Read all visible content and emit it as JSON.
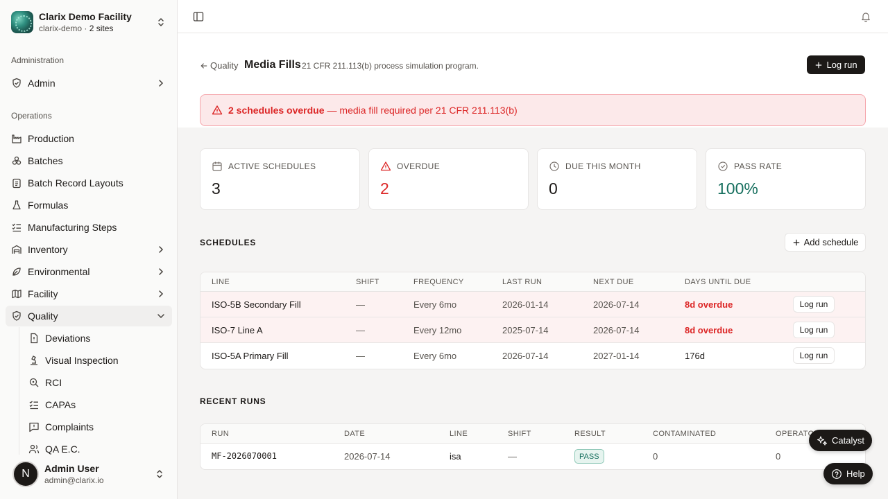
{
  "org": {
    "name": "Clarix Demo Facility",
    "slug": "clarix-demo",
    "separator": "·",
    "sites": "2 sites"
  },
  "sidebar": {
    "admin_group": "Administration",
    "admin_item": "Admin",
    "ops_group": "Operations",
    "items": [
      "Production",
      "Batches",
      "Batch Record Layouts",
      "Formulas",
      "Manufacturing Steps",
      "Inventory",
      "Environmental",
      "Facility",
      "Quality"
    ],
    "quality_sub": [
      "Deviations",
      "Visual Inspection",
      "RCI",
      "CAPAs",
      "Complaints",
      "QA E.C."
    ]
  },
  "user": {
    "initial": "N",
    "name": "Admin User",
    "email": "admin@clarix.io"
  },
  "header": {
    "back_label": "Quality",
    "title": "Media Fills",
    "subtitle": "21 CFR 211.113(b) process simulation program.",
    "log_run_label": "Log run"
  },
  "alert": {
    "bold": "2 schedules overdue",
    "rest": "— media fill required per 21 CFR 211.113(b)"
  },
  "stats": [
    {
      "label": "ACTIVE SCHEDULES",
      "value": "3"
    },
    {
      "label": "OVERDUE",
      "value": "2"
    },
    {
      "label": "DUE THIS MONTH",
      "value": "0"
    },
    {
      "label": "PASS RATE",
      "value": "100%"
    }
  ],
  "schedules": {
    "title": "SCHEDULES",
    "add_label": "Add schedule",
    "columns": [
      "LINE",
      "SHIFT",
      "FREQUENCY",
      "LAST RUN",
      "NEXT DUE",
      "DAYS UNTIL DUE"
    ],
    "rows": [
      {
        "line": "ISO-5B Secondary Fill",
        "shift": "—",
        "frequency": "Every 6mo",
        "last_run": "2026-01-14",
        "next_due": "2026-07-14",
        "days": "8d overdue",
        "action": "Log run"
      },
      {
        "line": "ISO-7 Line A",
        "shift": "—",
        "frequency": "Every 12mo",
        "last_run": "2025-07-14",
        "next_due": "2026-07-14",
        "days": "8d overdue",
        "action": "Log run"
      },
      {
        "line": "ISO-5A Primary Fill",
        "shift": "—",
        "frequency": "Every 6mo",
        "last_run": "2026-07-14",
        "next_due": "2027-01-14",
        "days": "176d",
        "action": "Log run"
      }
    ]
  },
  "runs": {
    "title": "RECENT RUNS",
    "columns": [
      "RUN",
      "DATE",
      "LINE",
      "SHIFT",
      "RESULT",
      "CONTAMINATED",
      "OPERATOR"
    ],
    "rows": [
      {
        "run": "MF-2026070001",
        "date": "2026-07-14",
        "line": "isa",
        "shift": "—",
        "result": "PASS",
        "contaminated": "0",
        "operators": "0"
      }
    ]
  },
  "floating": {
    "catalyst": "Catalyst",
    "help": "Help"
  },
  "colors": {
    "overdue": "#dc2626",
    "pass": "#166f5e",
    "primary": "#1c1917"
  }
}
